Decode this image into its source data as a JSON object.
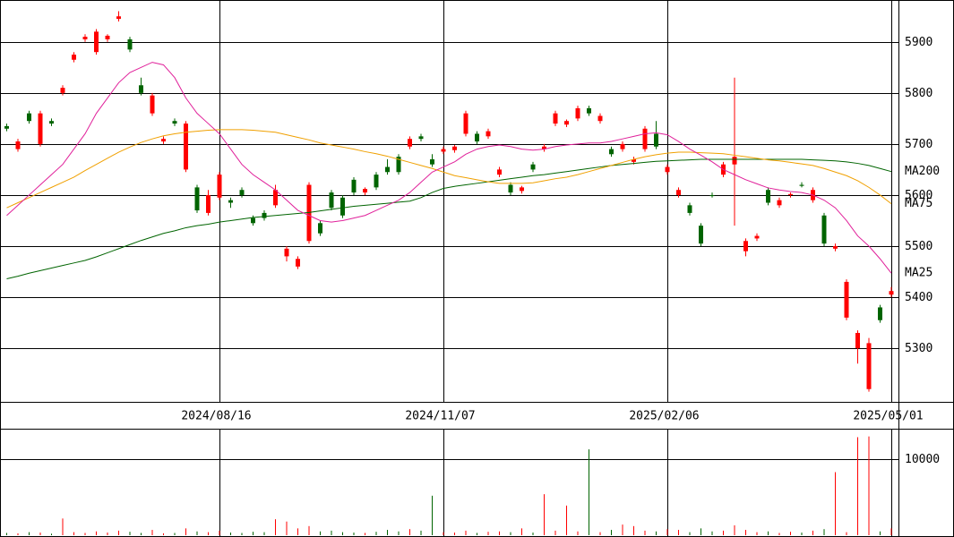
{
  "chart_data": {
    "type": "candlestick",
    "categories": [
      null,
      null,
      null,
      null,
      null,
      null,
      null,
      null,
      null,
      null,
      null,
      null,
      null,
      null,
      null,
      null,
      null,
      null,
      null,
      "2024/08/16",
      null,
      null,
      null,
      null,
      null,
      null,
      null,
      null,
      null,
      null,
      null,
      null,
      null,
      null,
      null,
      null,
      null,
      null,
      null,
      "2024/11/07",
      null,
      null,
      null,
      null,
      null,
      null,
      null,
      null,
      null,
      null,
      null,
      null,
      null,
      null,
      null,
      null,
      null,
      null,
      null,
      "2025/02/06",
      null,
      null,
      null,
      null,
      null,
      null,
      null,
      null,
      null,
      null,
      null,
      null,
      null,
      null,
      null,
      null,
      null,
      null,
      null,
      "2025/05/01"
    ],
    "open": [
      5735,
      5690,
      5760,
      5700,
      5745,
      5800,
      5865,
      5905,
      5880,
      5905,
      5945,
      5905,
      5815,
      5760,
      5705,
      5745,
      5650,
      5615,
      5565,
      5595,
      5590,
      5610,
      5555,
      5565,
      5580,
      5480,
      5460,
      5510,
      5545,
      5605,
      5595,
      5630,
      5605,
      5640,
      5655,
      5675,
      5695,
      5715,
      5670,
      5685,
      5688,
      5720,
      5720,
      5715,
      5640,
      5620,
      5608,
      5660,
      5690,
      5740,
      5738,
      5750,
      5770,
      5745,
      5690,
      5690,
      5665,
      5690,
      5720,
      5645,
      5600,
      5580,
      5540,
      5600,
      5640,
      5660,
      5490,
      5515,
      5610,
      5580,
      5600,
      5620,
      5590,
      5560,
      5495,
      5360,
      5300,
      5220,
      5380,
      5405
    ],
    "high": [
      5740,
      5710,
      5765,
      5765,
      5750,
      5815,
      5880,
      5915,
      5925,
      5915,
      5960,
      5910,
      5830,
      5800,
      5715,
      5750,
      5745,
      5620,
      5610,
      5645,
      5595,
      5615,
      5560,
      5570,
      5620,
      5500,
      5480,
      5625,
      5550,
      5610,
      5600,
      5635,
      5615,
      5645,
      5670,
      5680,
      5715,
      5720,
      5680,
      5695,
      5698,
      5765,
      5725,
      5730,
      5655,
      5625,
      5618,
      5665,
      5700,
      5765,
      5748,
      5775,
      5775,
      5760,
      5695,
      5705,
      5675,
      5735,
      5745,
      5660,
      5615,
      5585,
      5545,
      5605,
      5665,
      5830,
      5515,
      5525,
      5615,
      5595,
      5605,
      5625,
      5615,
      5565,
      5505,
      5435,
      5335,
      5320,
      5385,
      5420
    ],
    "low": [
      5725,
      5685,
      5740,
      5695,
      5735,
      5795,
      5860,
      5900,
      5875,
      5900,
      5940,
      5880,
      5795,
      5755,
      5700,
      5735,
      5645,
      5565,
      5560,
      5590,
      5575,
      5595,
      5540,
      5550,
      5575,
      5470,
      5455,
      5505,
      5520,
      5570,
      5555,
      5600,
      5600,
      5610,
      5640,
      5640,
      5690,
      5705,
      5655,
      5680,
      5683,
      5715,
      5700,
      5710,
      5635,
      5600,
      5603,
      5645,
      5685,
      5735,
      5733,
      5745,
      5755,
      5740,
      5675,
      5685,
      5660,
      5685,
      5690,
      5640,
      5595,
      5560,
      5500,
      5595,
      5635,
      5540,
      5480,
      5510,
      5580,
      5575,
      5595,
      5615,
      5585,
      5500,
      5490,
      5355,
      5270,
      5215,
      5350,
      5400
    ],
    "close": [
      5730,
      5705,
      5745,
      5760,
      5740,
      5810,
      5875,
      5910,
      5920,
      5912,
      5950,
      5885,
      5800,
      5795,
      5710,
      5740,
      5740,
      5570,
      5600,
      5640,
      5585,
      5600,
      5545,
      5555,
      5610,
      5495,
      5475,
      5620,
      5525,
      5575,
      5560,
      5605,
      5612,
      5615,
      5645,
      5645,
      5710,
      5710,
      5660,
      5690,
      5695,
      5760,
      5705,
      5725,
      5650,
      5605,
      5615,
      5650,
      5695,
      5760,
      5745,
      5770,
      5760,
      5755,
      5680,
      5700,
      5670,
      5730,
      5695,
      5655,
      5610,
      5565,
      5505,
      5598,
      5660,
      5675,
      5510,
      5520,
      5585,
      5590,
      5602,
      5618,
      5610,
      5505,
      5500,
      5430,
      5330,
      5310,
      5355,
      5412
    ],
    "up_color": "#ff0000",
    "down_color": "#006400",
    "ylim": [
      5195,
      5982
    ],
    "yticks": [
      5300,
      5400,
      5500,
      5600,
      5700,
      5800,
      5900
    ],
    "grid": true,
    "series": [
      {
        "name": "MA200",
        "color": "#006400",
        "values": [
          5436,
          5441,
          5447,
          5452,
          5457,
          5462,
          5467,
          5472,
          5479,
          5487,
          5495,
          5503,
          5511,
          5518,
          5525,
          5530,
          5536,
          5540,
          5543,
          5547,
          5550,
          5553,
          5556,
          5558,
          5560,
          5562,
          5564,
          5566,
          5569,
          5572,
          5575,
          5578,
          5580,
          5582,
          5584,
          5586,
          5588,
          5595,
          5605,
          5613,
          5617,
          5620,
          5623,
          5626,
          5629,
          5632,
          5635,
          5638,
          5640,
          5643,
          5646,
          5649,
          5652,
          5655,
          5658,
          5660,
          5662,
          5664,
          5666,
          5667,
          5668,
          5669,
          5670,
          5670,
          5670,
          5670,
          5670,
          5670,
          5670,
          5670,
          5670,
          5670,
          5669,
          5668,
          5667,
          5665,
          5662,
          5658,
          5652,
          5646
        ]
      },
      {
        "name": "MA75",
        "color": "#f0a000",
        "values": [
          5575,
          5585,
          5595,
          5605,
          5615,
          5625,
          5635,
          5648,
          5660,
          5672,
          5684,
          5694,
          5703,
          5710,
          5716,
          5720,
          5723,
          5725,
          5727,
          5728,
          5728,
          5728,
          5727,
          5725,
          5723,
          5718,
          5713,
          5708,
          5702,
          5698,
          5694,
          5690,
          5685,
          5681,
          5676,
          5670,
          5664,
          5658,
          5652,
          5645,
          5638,
          5634,
          5630,
          5626,
          5623,
          5623,
          5623,
          5624,
          5628,
          5632,
          5635,
          5640,
          5646,
          5652,
          5658,
          5664,
          5670,
          5675,
          5679,
          5682,
          5684,
          5684,
          5683,
          5682,
          5681,
          5678,
          5675,
          5672,
          5669,
          5667,
          5664,
          5661,
          5658,
          5652,
          5645,
          5638,
          5628,
          5615,
          5600,
          5583
        ]
      },
      {
        "name": "MA25",
        "color": "#e0209a",
        "values": [
          5560,
          5580,
          5600,
          5620,
          5640,
          5660,
          5690,
          5720,
          5760,
          5790,
          5820,
          5840,
          5850,
          5860,
          5855,
          5830,
          5790,
          5760,
          5740,
          5720,
          5690,
          5660,
          5640,
          5625,
          5610,
          5590,
          5570,
          5560,
          5550,
          5547,
          5550,
          5555,
          5560,
          5570,
          5580,
          5590,
          5605,
          5625,
          5645,
          5655,
          5665,
          5680,
          5690,
          5695,
          5698,
          5695,
          5690,
          5688,
          5690,
          5695,
          5698,
          5700,
          5702,
          5702,
          5705,
          5710,
          5715,
          5720,
          5722,
          5718,
          5705,
          5690,
          5678,
          5665,
          5650,
          5640,
          5630,
          5622,
          5614,
          5610,
          5607,
          5605,
          5600,
          5590,
          5575,
          5550,
          5520,
          5500,
          5475,
          5447
        ]
      }
    ],
    "volume": {
      "values": [
        300,
        250,
        400,
        350,
        200,
        2200,
        400,
        300,
        500,
        350,
        600,
        450,
        300,
        700,
        250,
        300,
        900,
        500,
        400,
        600,
        350,
        300,
        450,
        400,
        2100,
        1800,
        900,
        1200,
        500,
        600,
        400,
        350,
        300,
        450,
        700,
        500,
        800,
        600,
        5200,
        400,
        350,
        600,
        300,
        450,
        500,
        400,
        900,
        350,
        5400,
        600,
        3900,
        500,
        11300,
        400,
        700,
        1400,
        1200,
        600,
        500,
        800,
        700,
        400,
        900,
        500,
        600,
        1300,
        700,
        400,
        500,
        300,
        450,
        350,
        600,
        800,
        8300,
        400,
        12900,
        13000,
        500,
        900
      ],
      "ylim": [
        0,
        13900
      ],
      "yticks": [
        10000
      ]
    }
  }
}
